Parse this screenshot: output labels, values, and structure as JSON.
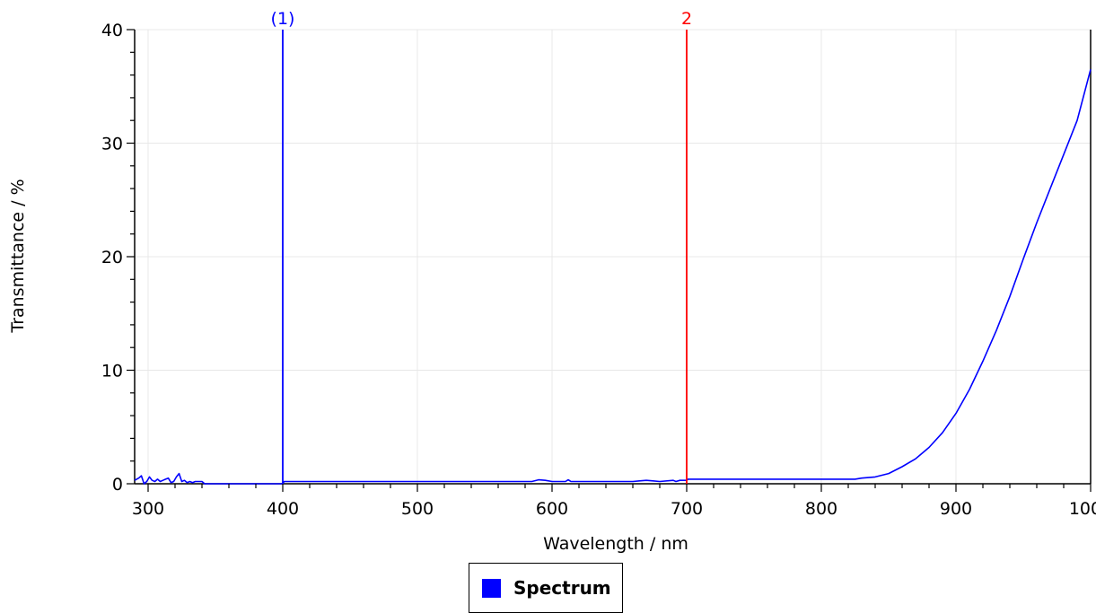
{
  "chart_data": {
    "type": "line",
    "xlabel": "Wavelength / nm",
    "ylabel": "Transmittance / %",
    "xlim": [
      290,
      1000
    ],
    "ylim": [
      0,
      40
    ],
    "x_ticks": [
      300,
      400,
      500,
      600,
      700,
      800,
      900,
      1000
    ],
    "y_ticks": [
      0,
      10,
      20,
      30,
      40
    ],
    "grid": true,
    "legend_placement": "bottom-center",
    "series": [
      {
        "name": "Spectrum",
        "color": "#0000ff",
        "x": [
          290,
          293,
          295,
          297,
          299,
          301,
          303,
          305,
          307,
          309,
          311,
          313,
          315,
          317,
          319,
          321,
          323,
          325,
          327,
          329,
          331,
          333,
          335,
          340,
          342,
          350,
          380,
          400,
          401,
          450,
          500,
          550,
          585,
          590,
          595,
          600,
          605,
          610,
          612,
          614,
          620,
          660,
          665,
          670,
          675,
          680,
          690,
          692,
          695,
          700,
          701,
          750,
          800,
          825,
          830,
          840,
          850,
          860,
          870,
          880,
          890,
          900,
          910,
          920,
          930,
          940,
          950,
          960,
          970,
          980,
          990,
          1000
        ],
        "y": [
          0.3,
          0.5,
          0.7,
          0.0,
          0.2,
          0.6,
          0.3,
          0.2,
          0.4,
          0.2,
          0.3,
          0.4,
          0.5,
          0.1,
          0.2,
          0.6,
          0.9,
          0.2,
          0.3,
          0.1,
          0.2,
          0.1,
          0.2,
          0.2,
          0.0,
          0.0,
          0.0,
          0.0,
          0.2,
          0.2,
          0.2,
          0.2,
          0.2,
          0.35,
          0.3,
          0.2,
          0.2,
          0.2,
          0.35,
          0.2,
          0.2,
          0.2,
          0.25,
          0.3,
          0.25,
          0.2,
          0.3,
          0.2,
          0.3,
          0.3,
          0.4,
          0.4,
          0.4,
          0.4,
          0.5,
          0.6,
          0.9,
          1.5,
          2.2,
          3.2,
          4.5,
          6.2,
          8.3,
          10.8,
          13.5,
          16.5,
          19.8,
          23.0,
          26.0,
          29.0,
          32.0,
          36.5
        ]
      }
    ],
    "markers": [
      {
        "label": "(1)",
        "x": 400,
        "color": "#0000ff"
      },
      {
        "label": "2",
        "x": 700,
        "color": "#ff0000"
      }
    ]
  },
  "legend": {
    "label": "Spectrum",
    "swatch_color": "#0000ff"
  }
}
